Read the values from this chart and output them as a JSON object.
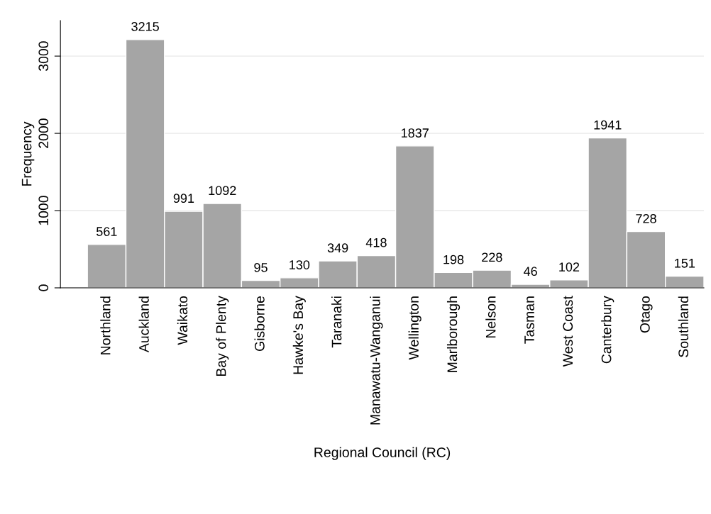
{
  "chart_data": {
    "type": "bar",
    "xlabel": "Regional Council (RC)",
    "ylabel": "Frequency",
    "categories": [
      "Northland",
      "Auckland",
      "Waikato",
      "Bay of Plenty",
      "Gisborne",
      "Hawke's Bay",
      "Taranaki",
      "Manawatu-Wanganui",
      "Wellington",
      "Marlborough",
      "Nelson",
      "Tasman",
      "West Coast",
      "Canterbury",
      "Otago",
      "Southland"
    ],
    "values": [
      561,
      3215,
      991,
      1092,
      95,
      130,
      349,
      418,
      1837,
      198,
      228,
      46,
      102,
      1941,
      728,
      151
    ],
    "color": "#a5a5a5",
    "ylim": [
      0,
      3460
    ],
    "yticks": [
      0,
      1000,
      2000,
      3000
    ],
    "grid": "y",
    "data_labels": true
  }
}
